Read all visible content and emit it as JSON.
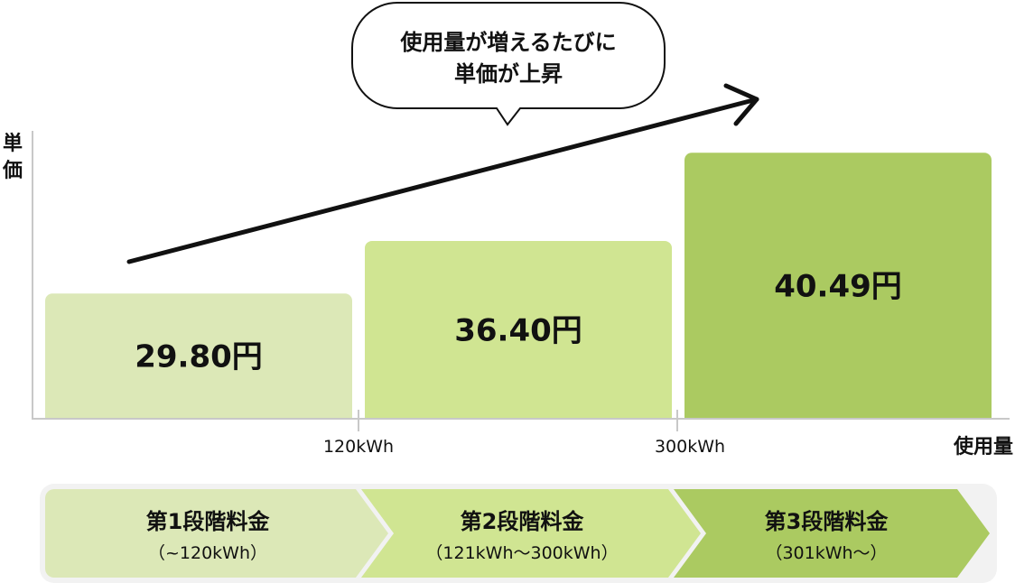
{
  "chart_data": {
    "type": "bar",
    "ylabel": "単価",
    "xlabel": "使用量",
    "x_ticks": [
      "120kWh",
      "300kWh"
    ],
    "categories": [
      "第1段階料金",
      "第2段階料金",
      "第3段階料金"
    ],
    "values": [
      29.8,
      36.4,
      40.49
    ],
    "data_labels": [
      "29.80円",
      "36.40円",
      "40.49円"
    ],
    "colors": [
      "#dce8b7",
      "#d0e592",
      "#abca61"
    ],
    "grid": false
  },
  "callout": {
    "line1": "使用量が増えるたびに",
    "line2": "単価が上昇"
  },
  "tiers": [
    {
      "name": "第1段階料金",
      "range": "（~120kWh）"
    },
    {
      "name": "第2段階料金",
      "range": "（121kWh〜300kWh）"
    },
    {
      "name": "第3段階料金",
      "range": "（301kWh〜）"
    }
  ]
}
